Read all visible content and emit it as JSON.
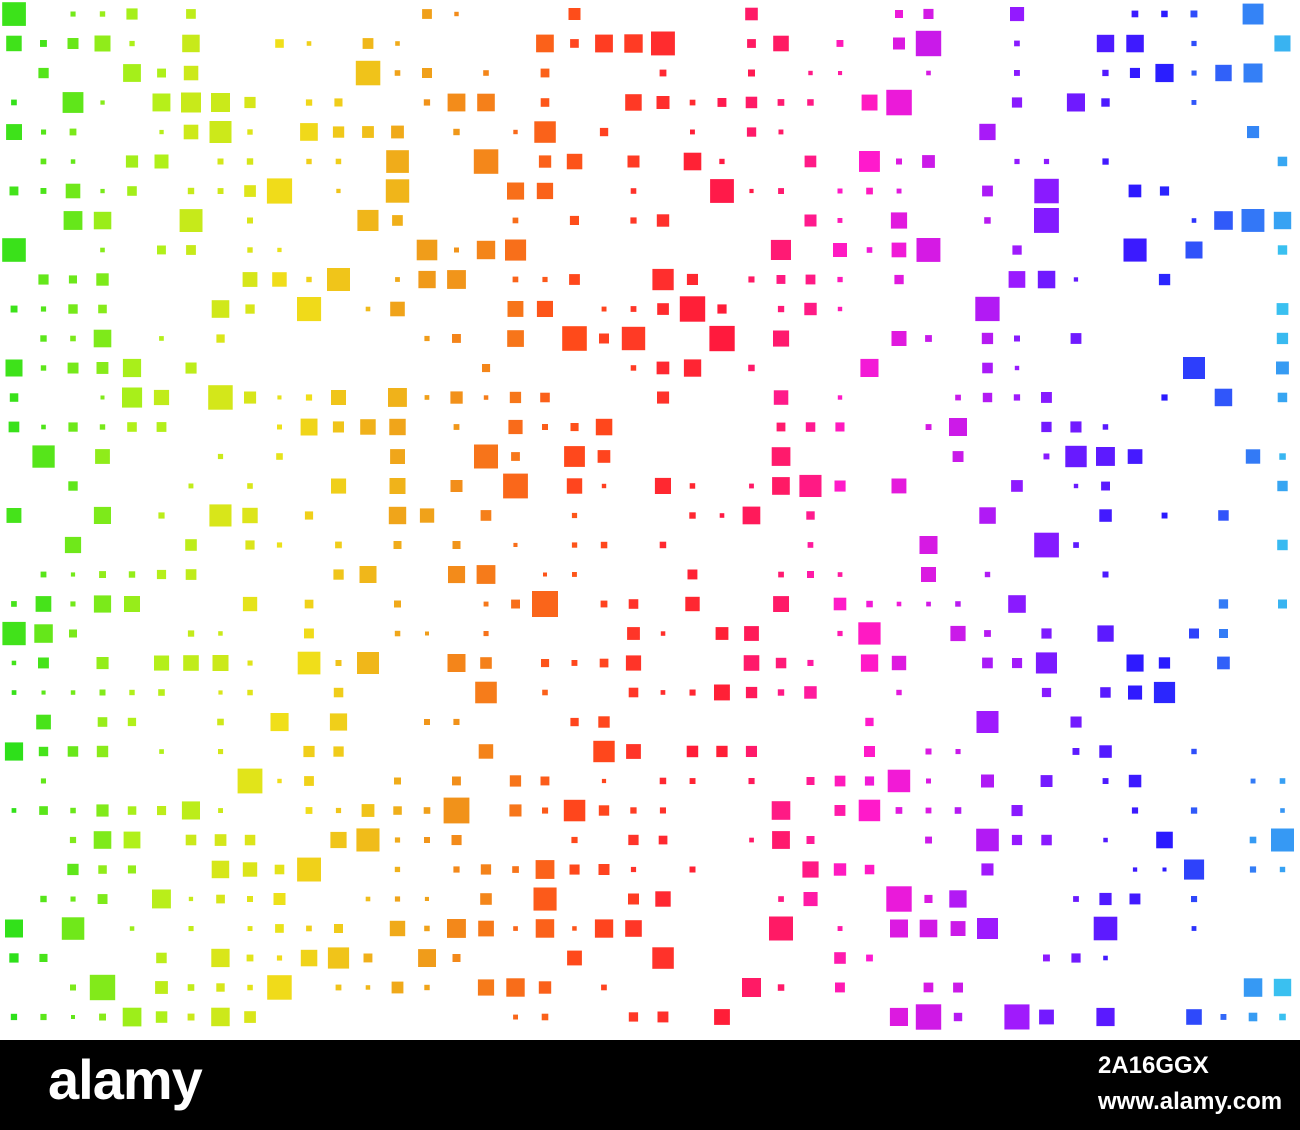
{
  "image": {
    "background_color": "#ffffff",
    "subject": "square-dot mosaic",
    "gradient_colors": [
      "#2ee01a",
      "#b0f01a",
      "#f0e01a",
      "#f09a1a",
      "#ff4a1a",
      "#ff1a3a",
      "#ff1ad0",
      "#9a1aff",
      "#2a1aff",
      "#3ac0f0"
    ]
  },
  "watermark": {
    "logo_text": "alamy",
    "image_id": "2A16GGX",
    "site": "www.alamy.com",
    "bar_color": "#000000",
    "text_color": "#ffffff"
  }
}
